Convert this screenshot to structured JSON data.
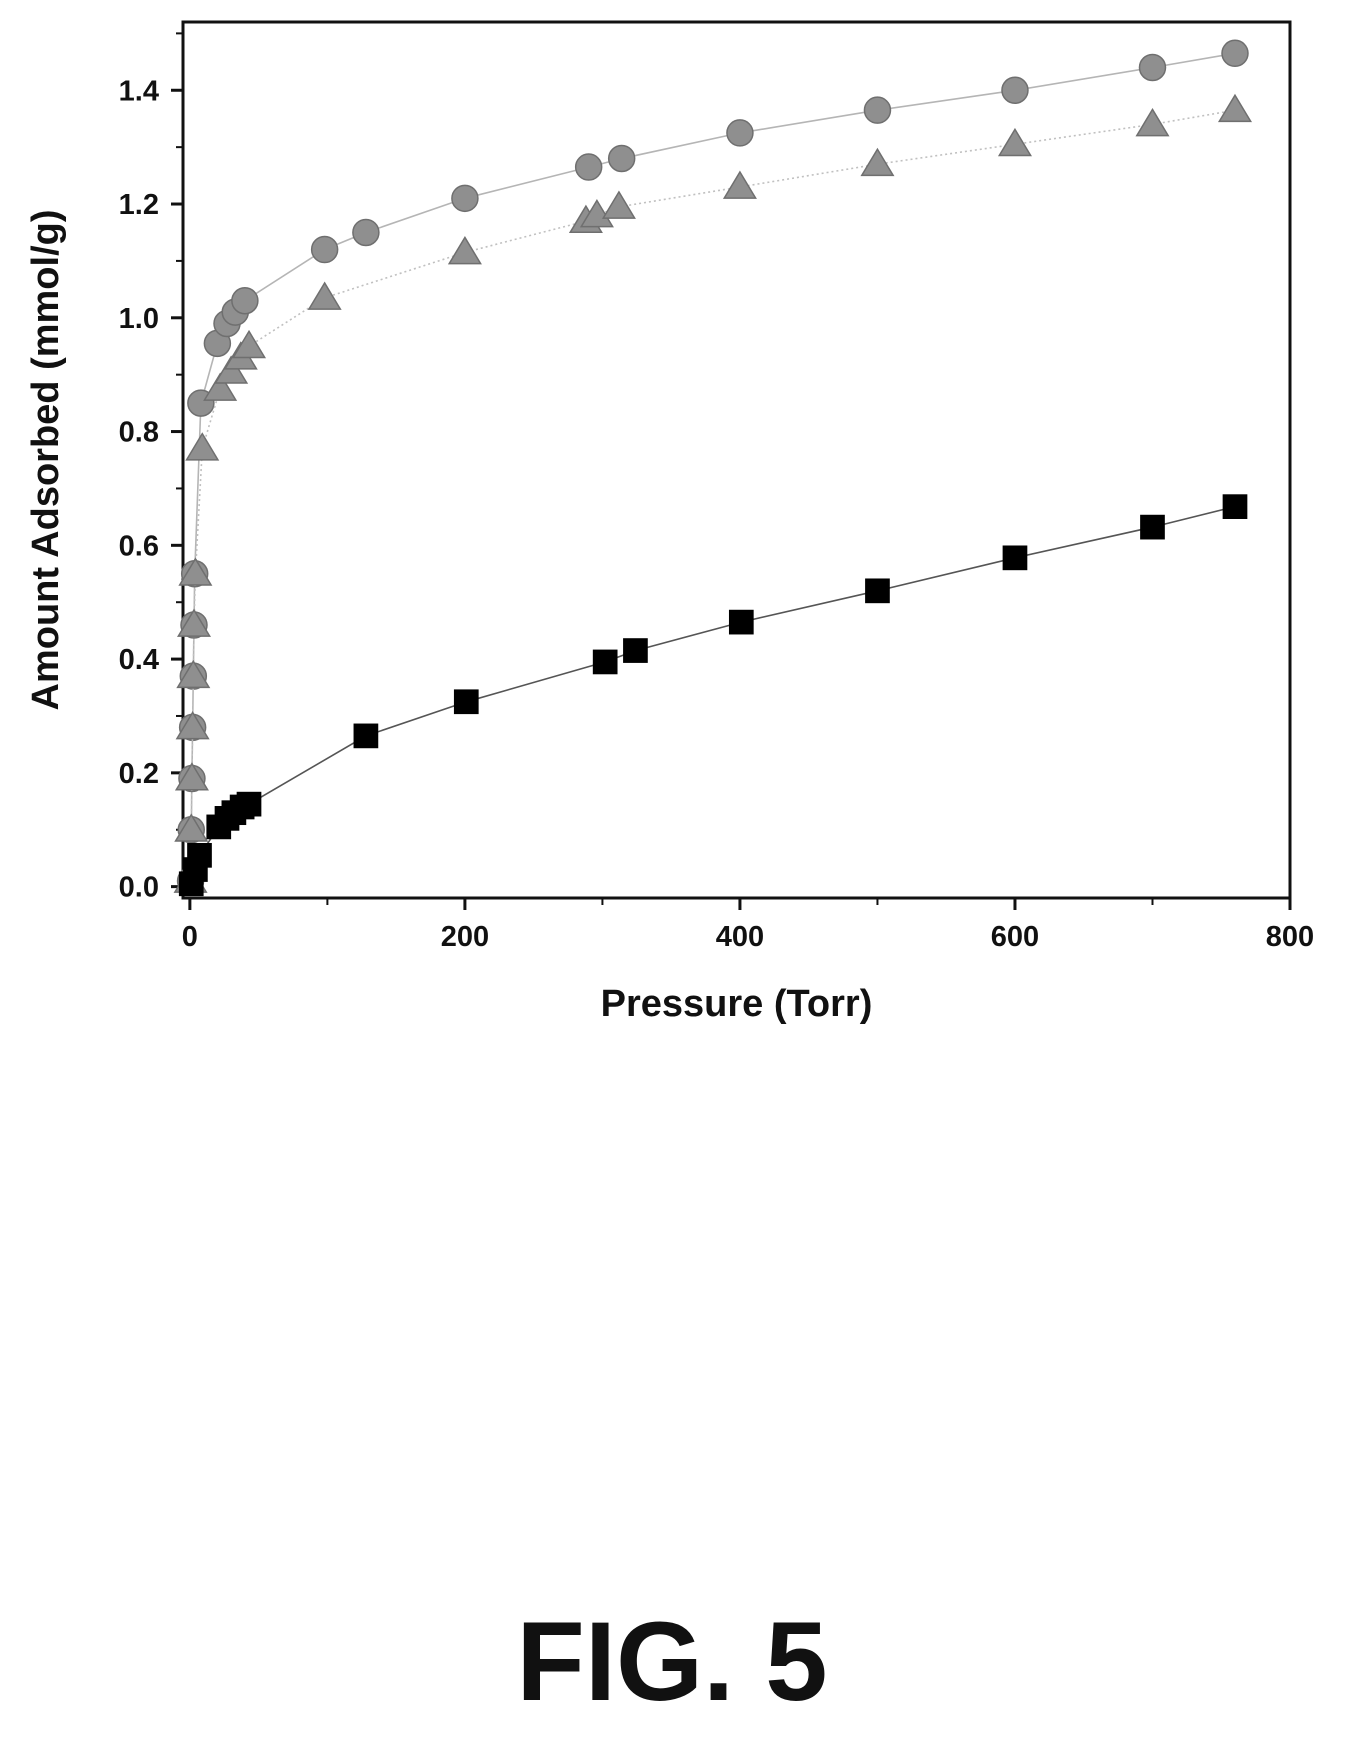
{
  "figure": {
    "caption": "FIG. 5"
  },
  "chart_data": {
    "type": "scatter",
    "xlabel": "Pressure (Torr)",
    "ylabel": "Amount Adsorbed (mmol/g)",
    "xlim": [
      -5,
      800
    ],
    "ylim": [
      -0.02,
      1.52
    ],
    "x_ticks": [
      0,
      200,
      400,
      600,
      800
    ],
    "y_ticks": [
      0.0,
      0.2,
      0.4,
      0.6,
      0.8,
      1.0,
      1.2,
      1.4
    ],
    "x_tick_labels": [
      "0",
      "200",
      "400",
      "600",
      "800"
    ],
    "y_tick_labels": [
      "0.0",
      "0.2",
      "0.4",
      "0.6",
      "0.8",
      "1.0",
      "1.2",
      "1.4"
    ],
    "grid": false,
    "legend": "none",
    "series": [
      {
        "marker": "circle",
        "color": "#8f8f8f",
        "line_color": "#b5b5b5",
        "connected": true,
        "points": [
          [
            0.5,
            0.01
          ],
          [
            1,
            0.1
          ],
          [
            1.5,
            0.19
          ],
          [
            2,
            0.28
          ],
          [
            2.5,
            0.37
          ],
          [
            3,
            0.46
          ],
          [
            3.5,
            0.55
          ],
          [
            8,
            0.85
          ],
          [
            20,
            0.955
          ],
          [
            27,
            0.99
          ],
          [
            33,
            1.01
          ],
          [
            40,
            1.03
          ],
          [
            98,
            1.12
          ],
          [
            128,
            1.15
          ],
          [
            200,
            1.21
          ],
          [
            290,
            1.265
          ],
          [
            314,
            1.28
          ],
          [
            400,
            1.325
          ],
          [
            500,
            1.365
          ],
          [
            600,
            1.4
          ],
          [
            700,
            1.44
          ],
          [
            760,
            1.465
          ]
        ]
      },
      {
        "marker": "triangle",
        "color": "#8f8f8f",
        "line_color": "#c0c0c0",
        "connected": true,
        "line_style": "dotted",
        "points": [
          [
            0.5,
            0.01
          ],
          [
            1,
            0.1
          ],
          [
            1.5,
            0.19
          ],
          [
            2,
            0.28
          ],
          [
            2.5,
            0.37
          ],
          [
            3,
            0.46
          ],
          [
            4,
            0.55
          ],
          [
            9,
            0.77
          ],
          [
            22,
            0.875
          ],
          [
            30,
            0.905
          ],
          [
            37,
            0.93
          ],
          [
            43,
            0.95
          ],
          [
            98,
            1.035
          ],
          [
            200,
            1.115
          ],
          [
            288,
            1.17
          ],
          [
            296,
            1.18
          ],
          [
            312,
            1.195
          ],
          [
            400,
            1.23
          ],
          [
            500,
            1.27
          ],
          [
            600,
            1.305
          ],
          [
            700,
            1.34
          ],
          [
            760,
            1.365
          ]
        ]
      },
      {
        "marker": "square",
        "color": "#000000",
        "line_color": "#555555",
        "connected": true,
        "points": [
          [
            1,
            0.005
          ],
          [
            4,
            0.03
          ],
          [
            7,
            0.055
          ],
          [
            21,
            0.105
          ],
          [
            27,
            0.12
          ],
          [
            32,
            0.13
          ],
          [
            38,
            0.14
          ],
          [
            43,
            0.145
          ],
          [
            128,
            0.265
          ],
          [
            201,
            0.325
          ],
          [
            302,
            0.395
          ],
          [
            324,
            0.415
          ],
          [
            401,
            0.465
          ],
          [
            500,
            0.52
          ],
          [
            600,
            0.578
          ],
          [
            700,
            0.632
          ],
          [
            760,
            0.668
          ]
        ]
      }
    ]
  }
}
